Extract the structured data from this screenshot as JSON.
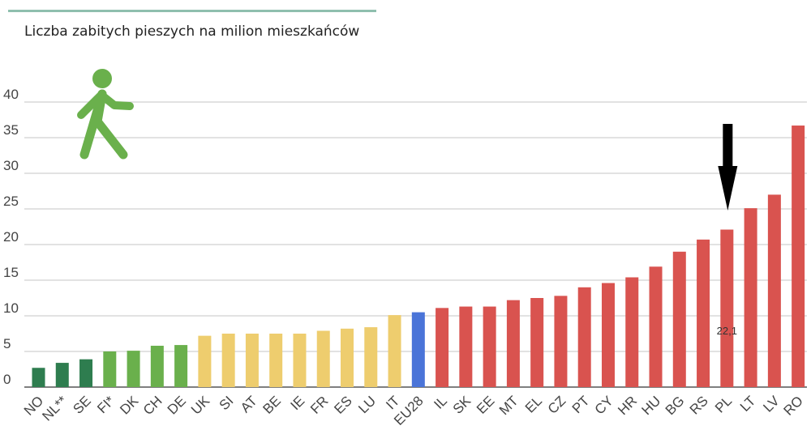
{
  "chart_data": {
    "type": "bar",
    "title": "Liczba zabitych pieszych na milion mieszkańców",
    "xlabel": "",
    "ylabel": "",
    "ylim": [
      0,
      40
    ],
    "yticks": [
      0,
      5,
      10,
      15,
      20,
      25,
      30,
      35,
      40
    ],
    "grid": true,
    "categories": [
      "NO",
      "NL**",
      "SE",
      "FI*",
      "DK",
      "CH",
      "DE",
      "UK",
      "SI",
      "AT",
      "BE",
      "IE",
      "FR",
      "ES",
      "LU",
      "IT",
      "EU28",
      "IL",
      "SK",
      "EE",
      "MT",
      "EL",
      "CZ",
      "PT",
      "CY",
      "HR",
      "HU",
      "BG",
      "RS",
      "PL",
      "LT",
      "LV",
      "RO"
    ],
    "values": [
      2.7,
      3.4,
      3.9,
      5.0,
      5.1,
      5.8,
      5.9,
      7.2,
      7.5,
      7.5,
      7.5,
      7.5,
      7.9,
      8.2,
      8.4,
      10.1,
      10.5,
      11.1,
      11.3,
      11.3,
      12.2,
      12.5,
      12.8,
      14.0,
      14.6,
      15.4,
      16.9,
      19.0,
      20.7,
      22.1,
      25.1,
      27.0,
      36.7
    ],
    "bar_colors": [
      "#2e7d4f",
      "#2e7d4f",
      "#2e7d4f",
      "#6ab04c",
      "#6ab04c",
      "#6ab04c",
      "#6ab04c",
      "#eecd6e",
      "#eecd6e",
      "#eecd6e",
      "#eecd6e",
      "#eecd6e",
      "#eecd6e",
      "#eecd6e",
      "#eecd6e",
      "#eecd6e",
      "#4a74d8",
      "#d9534f",
      "#d9534f",
      "#d9534f",
      "#d9534f",
      "#d9534f",
      "#d9534f",
      "#d9534f",
      "#d9534f",
      "#d9534f",
      "#d9534f",
      "#d9534f",
      "#d9534f",
      "#d9534f",
      "#d9534f",
      "#d9534f",
      "#d9534f"
    ],
    "annotations": [
      {
        "category": "PL",
        "text": "22,1",
        "marker": "down-arrow"
      }
    ],
    "icon": "pedestrian-icon",
    "icon_color": "#6ab04c",
    "grid_color": "#d9d9d9",
    "axis_color": "#555555",
    "tick_label_color": "#444444"
  }
}
